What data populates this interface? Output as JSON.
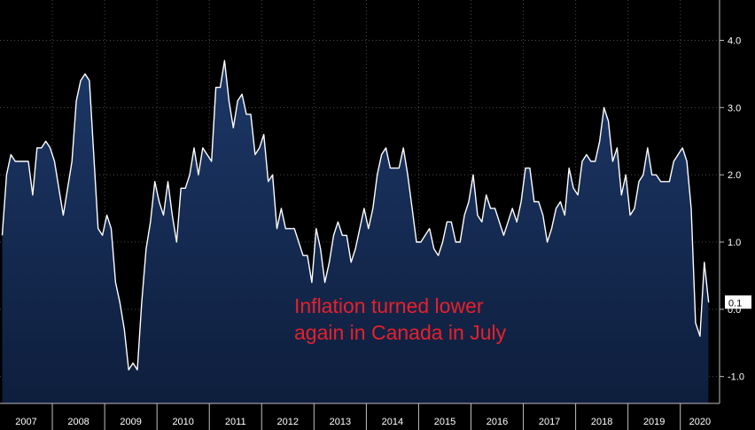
{
  "chart_data": {
    "type": "area",
    "title": "",
    "xlabel": "",
    "ylabel": "",
    "ylim": [
      -1.4,
      4.6
    ],
    "yticks": [
      -1.0,
      0.0,
      1.0,
      2.0,
      3.0,
      4.0
    ],
    "ytick_labels": [
      "-1.0",
      "0.0",
      "1.0",
      "2.0",
      "3.0",
      "4.0"
    ],
    "x_start_year": 2007,
    "x_end_year": 2020.75,
    "year_labels": [
      "2007",
      "2008",
      "2009",
      "2010",
      "2011",
      "2012",
      "2013",
      "2014",
      "2015",
      "2016",
      "2017",
      "2018",
      "2019",
      "2020"
    ],
    "grid": true,
    "last_value_label": "0.1",
    "series": [
      {
        "values": [
          1.1,
          2.0,
          2.3,
          2.2,
          2.2,
          2.2,
          2.2,
          1.7,
          2.4,
          2.4,
          2.5,
          2.4,
          2.2,
          1.8,
          1.4,
          1.8,
          2.2,
          3.1,
          3.4,
          3.5,
          3.4,
          2.3,
          1.2,
          1.1,
          1.4,
          1.2,
          0.4,
          0.1,
          -0.3,
          -0.9,
          -0.8,
          -0.9,
          0.1,
          0.9,
          1.3,
          1.9,
          1.6,
          1.4,
          1.9,
          1.4,
          1.0,
          1.8,
          1.8,
          2.0,
          2.4,
          2.0,
          2.4,
          2.3,
          2.2,
          3.3,
          3.3,
          3.7,
          3.1,
          2.7,
          3.1,
          3.2,
          2.9,
          2.9,
          2.3,
          2.4,
          2.6,
          1.9,
          2.0,
          1.2,
          1.5,
          1.2,
          1.2,
          1.2,
          1.0,
          0.8,
          0.8,
          0.4,
          1.2,
          0.9,
          0.4,
          0.7,
          1.1,
          1.3,
          1.1,
          1.1,
          0.7,
          0.9,
          1.2,
          1.5,
          1.2,
          1.5,
          2.0,
          2.3,
          2.4,
          2.1,
          2.1,
          2.1,
          2.4,
          2.0,
          1.5,
          1.0,
          1.0,
          1.1,
          1.2,
          0.9,
          0.8,
          1.0,
          1.3,
          1.3,
          1.0,
          1.0,
          1.4,
          1.6,
          2.0,
          1.4,
          1.3,
          1.7,
          1.5,
          1.5,
          1.3,
          1.1,
          1.3,
          1.5,
          1.3,
          1.6,
          2.1,
          2.1,
          1.6,
          1.6,
          1.4,
          1.0,
          1.2,
          1.5,
          1.6,
          1.4,
          2.1,
          1.8,
          1.7,
          2.2,
          2.3,
          2.2,
          2.2,
          2.5,
          3.0,
          2.8,
          2.2,
          2.4,
          1.7,
          2.0,
          1.4,
          1.5,
          1.9,
          2.0,
          2.4,
          2.0,
          2.0,
          1.9,
          1.9,
          1.9,
          2.2,
          2.3,
          2.4,
          2.2,
          1.5,
          -0.2,
          -0.4,
          0.7,
          0.1
        ]
      }
    ]
  },
  "annotation": {
    "line1": "Inflation turned lower",
    "line2": "again in Canada in July"
  },
  "colors": {
    "background": "#000000",
    "area_top": "#1c3766",
    "area_bottom": "#0e1e3d",
    "line": "#ffffff",
    "grid": "#4a4a4a",
    "axis_text": "#ffffff",
    "annotation": "#e8202a",
    "last_label_bg": "#ffffff",
    "last_label_text": "#000000"
  }
}
